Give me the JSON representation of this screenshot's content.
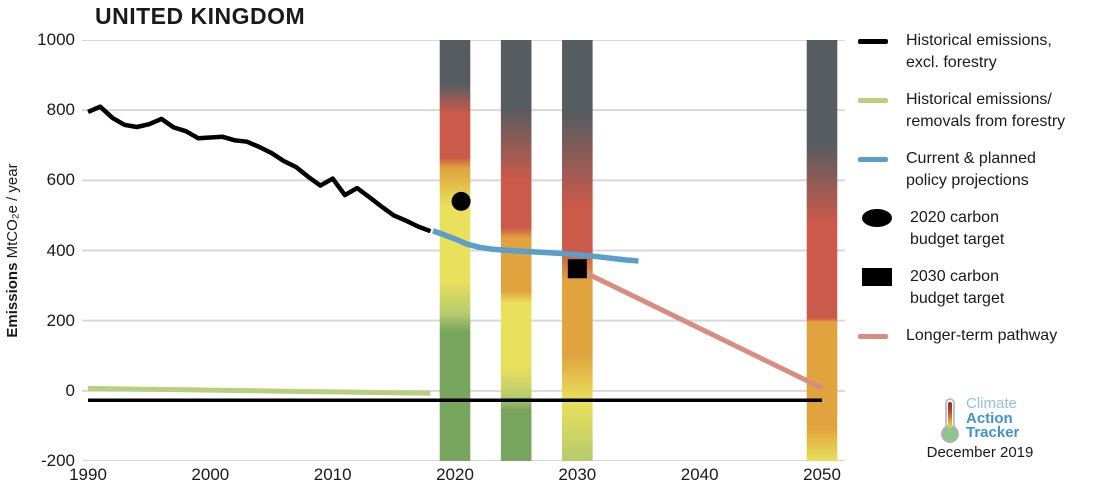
{
  "header": {
    "title": "UNITED KINGDOM"
  },
  "footer": {
    "logo": {
      "line1": "Climate",
      "line2": "Action",
      "line3": "Tracker",
      "icon": "thermometer-icon"
    },
    "date": "December 2019"
  },
  "legend": {
    "items": [
      {
        "swatch": "line",
        "color": "#000000",
        "line1": "Historical emissions,",
        "line2": "excl. forestry"
      },
      {
        "swatch": "line",
        "color": "#b8cf7d",
        "line1": "Historical emissions/",
        "line2": "removals from forestry"
      },
      {
        "swatch": "line",
        "color": "#5b9ec9",
        "line1": "Current & planned",
        "line2": "policy projections"
      },
      {
        "swatch": "circle",
        "color": "#000000",
        "line1": "2020 carbon",
        "line2": "budget target"
      },
      {
        "swatch": "square",
        "color": "#000000",
        "line1": "2030 carbon",
        "line2": "budget target"
      },
      {
        "swatch": "line",
        "color": "#d98d81",
        "line1": "Longer-term pathway",
        "line2": ""
      }
    ]
  },
  "chart_data": {
    "type": "line",
    "title": "UNITED KINGDOM",
    "y_axis": {
      "label_bold": "Emissions",
      "label_rest": " MtCO₂e / year",
      "min": -200,
      "max": 1000,
      "ticks": [
        1000,
        800,
        600,
        400,
        200,
        0,
        -200
      ]
    },
    "x_axis": {
      "min": 1990,
      "max": 2050,
      "ticks": [
        1990,
        2000,
        2010,
        2020,
        2030,
        2040,
        2050
      ]
    },
    "grid": {
      "show": true,
      "color": "#d8d8d8"
    },
    "series": [
      {
        "id": "historical",
        "name": "Historical emissions, excl. forestry",
        "color": "#000000",
        "width": 4.5,
        "points": [
          [
            1990,
            795
          ],
          [
            1991,
            810
          ],
          [
            1992,
            778
          ],
          [
            1993,
            758
          ],
          [
            1994,
            752
          ],
          [
            1995,
            760
          ],
          [
            1996,
            775
          ],
          [
            1997,
            751
          ],
          [
            1998,
            740
          ],
          [
            1999,
            720
          ],
          [
            2000,
            722
          ],
          [
            2001,
            724
          ],
          [
            2002,
            714
          ],
          [
            2003,
            710
          ],
          [
            2004,
            695
          ],
          [
            2005,
            678
          ],
          [
            2006,
            655
          ],
          [
            2007,
            638
          ],
          [
            2008,
            610
          ],
          [
            2009,
            585
          ],
          [
            2010,
            605
          ],
          [
            2011,
            558
          ],
          [
            2012,
            578
          ],
          [
            2013,
            552
          ],
          [
            2014,
            525
          ],
          [
            2015,
            500
          ],
          [
            2016,
            485
          ],
          [
            2017,
            468
          ],
          [
            2018,
            455
          ]
        ]
      },
      {
        "id": "forestry",
        "name": "Historical emissions/removals from forestry",
        "color": "#b8cf7d",
        "width": 5,
        "points": [
          [
            1990,
            7
          ],
          [
            1994,
            5
          ],
          [
            1998,
            3
          ],
          [
            2002,
            1
          ],
          [
            2006,
            -1
          ],
          [
            2010,
            -3
          ],
          [
            2014,
            -5
          ],
          [
            2018,
            -7
          ]
        ]
      },
      {
        "id": "projection",
        "name": "Current & planned policy projections",
        "color": "#5b9ec9",
        "width": 5.5,
        "points": [
          [
            2018.2,
            456
          ],
          [
            2019,
            446
          ],
          [
            2020,
            433
          ],
          [
            2021,
            418
          ],
          [
            2022,
            409
          ],
          [
            2023,
            404
          ],
          [
            2024,
            401
          ],
          [
            2025,
            399
          ],
          [
            2026,
            397
          ],
          [
            2027,
            395
          ],
          [
            2028,
            393
          ],
          [
            2029,
            391
          ],
          [
            2030,
            388
          ],
          [
            2031,
            385
          ],
          [
            2032,
            381
          ],
          [
            2033,
            377
          ],
          [
            2034,
            373
          ],
          [
            2035,
            370
          ]
        ]
      },
      {
        "id": "pathway",
        "name": "Longer-term pathway",
        "color": "#d98d81",
        "width": 5,
        "points": [
          [
            2030,
            348
          ],
          [
            2050,
            8
          ]
        ]
      }
    ],
    "reference_line": {
      "value": -27,
      "color": "#000000",
      "width": 3.5,
      "x_start": 1990,
      "x_end": 2050
    },
    "markers": [
      {
        "shape": "circle",
        "x": 2020.5,
        "y": 540,
        "size": 19,
        "color": "#000000",
        "name": "2020 carbon budget target"
      },
      {
        "shape": "square",
        "x": 2030,
        "y": 348,
        "size": 19,
        "color": "#000000",
        "name": "2030 carbon budget target"
      }
    ],
    "rating_bars": {
      "width_years": 2.5,
      "colors": {
        "gray": "#575c61",
        "red": "#cb5a4a",
        "orange": "#e0a33e",
        "yellow": "#e9e05c",
        "yellowgreen": "#b7cb6d",
        "green": "#78a55e"
      },
      "bars": [
        {
          "year": 2020,
          "stops": [
            [
              1000,
              "gray"
            ],
            [
              875,
              "gray"
            ],
            [
              790,
              "red"
            ],
            [
              665,
              "red"
            ],
            [
              635,
              "orange"
            ],
            [
              525,
              "yellow"
            ],
            [
              315,
              "yellow"
            ],
            [
              220,
              "yellowgreen"
            ],
            [
              168,
              "green"
            ],
            [
              -200,
              "green"
            ]
          ]
        },
        {
          "year": 2025,
          "stops": [
            [
              1000,
              "gray"
            ],
            [
              805,
              "gray"
            ],
            [
              600,
              "red"
            ],
            [
              465,
              "red"
            ],
            [
              435,
              "orange"
            ],
            [
              285,
              "orange"
            ],
            [
              250,
              "yellow"
            ],
            [
              65,
              "yellow"
            ],
            [
              -15,
              "yellowgreen"
            ],
            [
              -55,
              "green"
            ],
            [
              -200,
              "green"
            ]
          ]
        },
        {
          "year": 2030,
          "stops": [
            [
              1000,
              "gray"
            ],
            [
              788,
              "gray"
            ],
            [
              525,
              "red"
            ],
            [
              395,
              "red"
            ],
            [
              315,
              "orange"
            ],
            [
              105,
              "orange"
            ],
            [
              -30,
              "yellow"
            ],
            [
              -200,
              "yellowgreen"
            ]
          ]
        },
        {
          "year": 2050,
          "stops": [
            [
              1000,
              "gray"
            ],
            [
              700,
              "gray"
            ],
            [
              480,
              "red"
            ],
            [
              207,
              "red"
            ],
            [
              196,
              "orange"
            ],
            [
              -105,
              "orange"
            ],
            [
              -200,
              "yellow"
            ]
          ]
        }
      ]
    }
  }
}
